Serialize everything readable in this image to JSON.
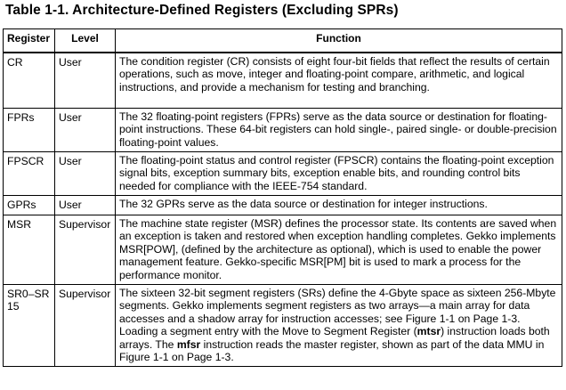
{
  "title": "Table 1-1. Architecture-Defined Registers (Excluding SPRs)",
  "headers": {
    "register": "Register",
    "level": "Level",
    "function": "Function"
  },
  "rows": [
    {
      "register": "CR",
      "level": "User",
      "function": "The condition register (CR) consists of eight four-bit fields that reflect the results of certain operations, such as move, integer and floating-point compare, arithmetic, and logical instructions, and provide a mechanism for testing and branching."
    },
    {
      "register": "FPRs",
      "level": "User",
      "function": "The 32 floating-point registers (FPRs) serve as the data source or destination for floating-point instructions. These 64-bit registers can hold single-, paired single- or double-precision floating-point values."
    },
    {
      "register": "FPSCR",
      "level": "User",
      "function": "The floating-point status and control register (FPSCR) contains the floating-point exception signal bits, exception summary bits, exception enable bits, and rounding control bits needed for compliance with the IEEE-754 standard."
    },
    {
      "register": "GPRs",
      "level": "User",
      "function": "The 32 GPRs serve as the data source or destination for integer instructions."
    },
    {
      "register": "MSR",
      "level": "Supervisor",
      "function": "The machine state register (MSR) defines the processor state. Its contents are saved when an exception is taken and restored when exception handling completes. Gekko implements MSR[POW], (defined by the architecture as optional), which is used to enable the power management feature. Gekko-specific MSR[PM] bit is used to mark a process for the performance monitor."
    },
    {
      "register": "SR0–SR 15",
      "level": "Supervisor",
      "function_parts": {
        "p1": "The sixteen 32-bit segment registers (SRs) define the 4-Gbyte space as sixteen 256-Mbyte segments. Gekko implements segment registers as two arrays—a main array for data accesses and a shadow array for instruction accesses; see Figure 1-1 on Page 1-3. Loading a segment entry with the Move to Segment Register (",
        "mn1": "mtsr",
        "p2": ") instruction loads both arrays. The ",
        "mn2": "mfsr",
        "p3": " instruction reads the master register, shown as part of the data MMU in Figure 1-1 on Page 1-3."
      }
    }
  ]
}
